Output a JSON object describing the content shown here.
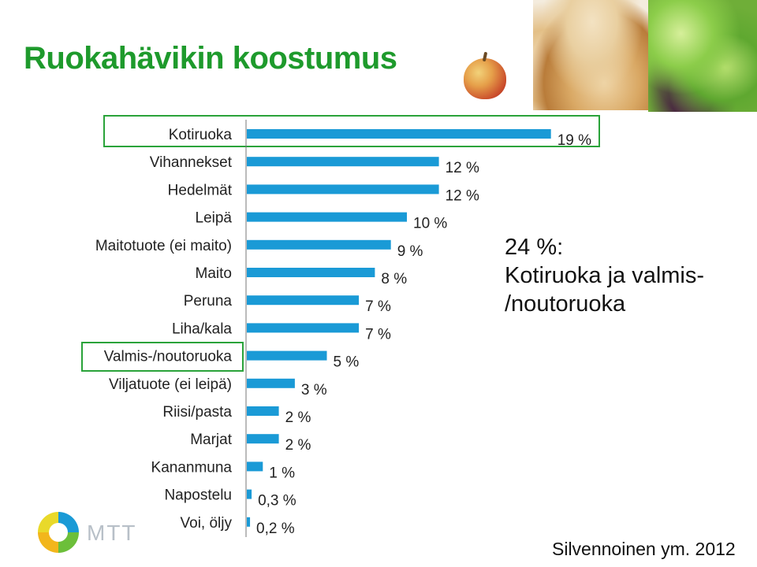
{
  "title": "Ruokahävikin koostumus",
  "chart_data": {
    "type": "bar",
    "orientation": "horizontal",
    "categories": [
      "Kotiruoka",
      "Vihannekset",
      "Hedelmät",
      "Leipä",
      "Maitotuote (ei maito)",
      "Maito",
      "Peruna",
      "Liha/kala",
      "Valmis-/noutoruoka",
      "Viljatuote (ei leipä)",
      "Riisi/pasta",
      "Marjat",
      "Kananmuna",
      "Napostelu",
      "Voi, öljy"
    ],
    "values": [
      19,
      12,
      12,
      10,
      9,
      8,
      7,
      7,
      5,
      3,
      2,
      2,
      1,
      0.3,
      0.2
    ],
    "value_labels": [
      "19 %",
      "12 %",
      "12 %",
      "10 %",
      "9 %",
      "8 %",
      "7 %",
      "7 %",
      "5 %",
      "3 %",
      "2 %",
      "2 %",
      "1 %",
      "0,3 %",
      "0,2 %"
    ],
    "highlighted": [
      "Kotiruoka",
      "Valmis-/noutoruoka"
    ],
    "bar_color": "#1a9ad6",
    "highlight_color": "#2aa33a",
    "xlim": [
      0,
      20
    ]
  },
  "callout": {
    "line1": "24 %:",
    "line2": "Kotiruoka ja valmis-",
    "line3": "/noutoruoka"
  },
  "source": "Silvennoinen ym. 2012",
  "logo_text": "MTT"
}
